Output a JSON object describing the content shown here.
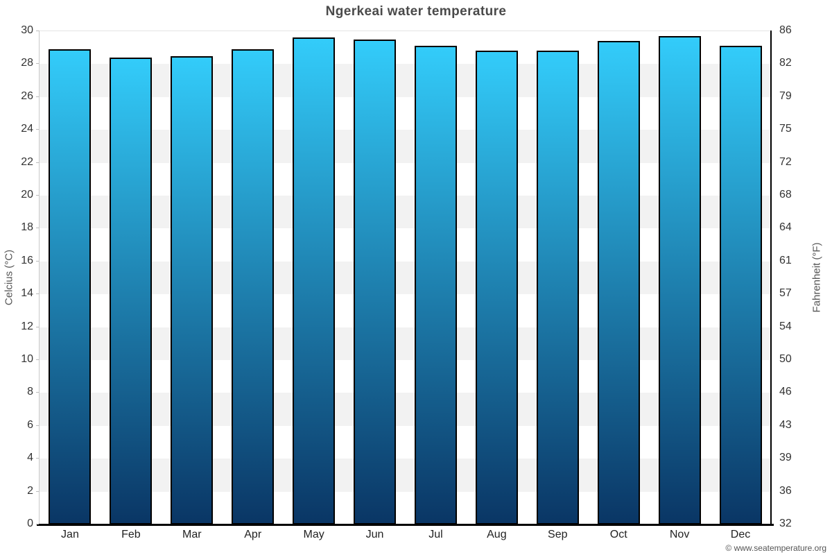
{
  "page": {
    "credit": "© www.seatemperature.org"
  },
  "chart_data": {
    "type": "bar",
    "title": "Ngerkeai water temperature",
    "categories": [
      "Jan",
      "Feb",
      "Mar",
      "Apr",
      "May",
      "Jun",
      "Jul",
      "Aug",
      "Sep",
      "Oct",
      "Nov",
      "Dec"
    ],
    "values": [
      28.9,
      28.4,
      28.5,
      28.9,
      29.6,
      29.5,
      29.1,
      28.8,
      28.8,
      29.4,
      29.7,
      29.1
    ],
    "values_unit": "°C",
    "xlabel": "",
    "y_left": {
      "label": "Celcius (°C)",
      "min": 0,
      "max": 30,
      "tick_step": 2,
      "ticks": [
        0,
        2,
        4,
        6,
        8,
        10,
        12,
        14,
        16,
        18,
        20,
        22,
        24,
        26,
        28,
        30
      ]
    },
    "y_right": {
      "label": "Fahrenheit (°F)",
      "ticks": [
        32,
        36,
        39,
        43,
        46,
        50,
        54,
        57,
        61,
        64,
        68,
        72,
        75,
        79,
        82,
        86
      ]
    },
    "grid": {
      "style": "alternating-horizontal-bands",
      "band_light": "#ffffff",
      "band_shade": "#f2f2f2"
    },
    "legend": "none",
    "colors": {
      "bar_gradient_top": "#33ccfa",
      "bar_gradient_bottom": "#0a3665",
      "bar_border": "#000000",
      "title_text": "#4a4a4a",
      "axis_text": "#333333"
    }
  }
}
